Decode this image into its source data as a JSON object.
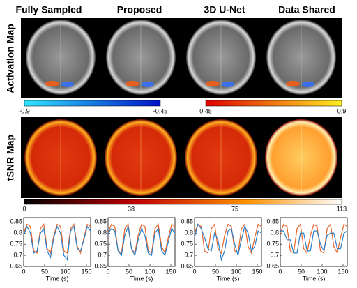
{
  "column_titles": [
    "Fully Sampled",
    "Proposed",
    "3D U-Net",
    "Data Shared"
  ],
  "row_labels": [
    "Activation Map",
    "tSNR Map"
  ],
  "colorbars": [
    {
      "ticks": [
        -0.9,
        -0.45
      ]
    },
    {
      "ticks": [
        0.45,
        0.9
      ]
    },
    {
      "ticks": [
        0,
        38,
        75,
        113
      ]
    }
  ],
  "chart_data": [
    {
      "type": "line",
      "xlabel": "Time (s)",
      "xlim": [
        0,
        160
      ],
      "ylim": [
        0.65,
        0.87
      ],
      "xticks": [
        0,
        50,
        100,
        150
      ],
      "yticks": [
        0.65,
        0.7,
        0.75,
        0.8,
        0.85
      ],
      "x": [
        0,
        8,
        16,
        24,
        32,
        40,
        48,
        56,
        64,
        72,
        80,
        88,
        96,
        104,
        112,
        120,
        128,
        136,
        144,
        152,
        160
      ],
      "series": [
        {
          "color": "#e8642a",
          "values": [
            0.8,
            0.84,
            0.83,
            0.72,
            0.71,
            0.82,
            0.84,
            0.73,
            0.71,
            0.79,
            0.84,
            0.83,
            0.72,
            0.71,
            0.82,
            0.84,
            0.74,
            0.71,
            0.78,
            0.84,
            0.83
          ]
        },
        {
          "color": "#2a7fc9",
          "values": [
            0.79,
            0.83,
            0.8,
            0.71,
            0.72,
            0.8,
            0.82,
            0.72,
            0.69,
            0.78,
            0.83,
            0.8,
            0.7,
            0.68,
            0.81,
            0.83,
            0.73,
            0.72,
            0.77,
            0.83,
            0.81
          ]
        }
      ]
    },
    {
      "type": "line",
      "xlabel": "Time (s)",
      "xlim": [
        0,
        160
      ],
      "ylim": [
        0.65,
        0.87
      ],
      "xticks": [
        0,
        50,
        100,
        150
      ],
      "yticks": [
        0.65,
        0.7,
        0.75,
        0.8,
        0.85
      ],
      "x": [
        0,
        8,
        16,
        24,
        32,
        40,
        48,
        56,
        64,
        72,
        80,
        88,
        96,
        104,
        112,
        120,
        128,
        136,
        144,
        152,
        160
      ],
      "series": [
        {
          "color": "#e8642a",
          "values": [
            0.8,
            0.84,
            0.83,
            0.72,
            0.71,
            0.82,
            0.84,
            0.73,
            0.71,
            0.79,
            0.84,
            0.83,
            0.72,
            0.71,
            0.82,
            0.84,
            0.74,
            0.71,
            0.78,
            0.84,
            0.83
          ]
        },
        {
          "color": "#2a7fc9",
          "values": [
            0.8,
            0.82,
            0.81,
            0.72,
            0.7,
            0.79,
            0.83,
            0.73,
            0.7,
            0.77,
            0.82,
            0.79,
            0.71,
            0.7,
            0.8,
            0.82,
            0.72,
            0.7,
            0.76,
            0.82,
            0.8
          ]
        }
      ]
    },
    {
      "type": "line",
      "xlabel": "Time (s)",
      "xlim": [
        0,
        160
      ],
      "ylim": [
        0.65,
        0.87
      ],
      "xticks": [
        0,
        50,
        100,
        150
      ],
      "yticks": [
        0.65,
        0.7,
        0.75,
        0.8,
        0.85
      ],
      "x": [
        0,
        8,
        16,
        24,
        32,
        40,
        48,
        56,
        64,
        72,
        80,
        88,
        96,
        104,
        112,
        120,
        128,
        136,
        144,
        152,
        160
      ],
      "series": [
        {
          "color": "#e8642a",
          "values": [
            0.8,
            0.84,
            0.83,
            0.72,
            0.71,
            0.82,
            0.84,
            0.73,
            0.71,
            0.79,
            0.84,
            0.83,
            0.72,
            0.71,
            0.82,
            0.84,
            0.74,
            0.71,
            0.78,
            0.84,
            0.83
          ]
        },
        {
          "color": "#2a7fc9",
          "values": [
            0.78,
            0.84,
            0.82,
            0.78,
            0.73,
            0.72,
            0.8,
            0.77,
            0.68,
            0.72,
            0.81,
            0.82,
            0.75,
            0.7,
            0.77,
            0.83,
            0.8,
            0.72,
            0.74,
            0.81,
            0.8
          ]
        }
      ]
    },
    {
      "type": "line",
      "xlabel": "Time (s)",
      "xlim": [
        0,
        160
      ],
      "ylim": [
        0.65,
        0.87
      ],
      "xticks": [
        0,
        50,
        100,
        150
      ],
      "yticks": [
        0.65,
        0.7,
        0.75,
        0.8,
        0.85
      ],
      "x": [
        0,
        8,
        16,
        24,
        32,
        40,
        48,
        56,
        64,
        72,
        80,
        88,
        96,
        104,
        112,
        120,
        128,
        136,
        144,
        152,
        160
      ],
      "series": [
        {
          "color": "#e8642a",
          "values": [
            0.8,
            0.84,
            0.83,
            0.72,
            0.71,
            0.82,
            0.84,
            0.73,
            0.71,
            0.79,
            0.84,
            0.83,
            0.72,
            0.71,
            0.82,
            0.84,
            0.74,
            0.71,
            0.78,
            0.84,
            0.83
          ]
        },
        {
          "color": "#2a7fc9",
          "values": [
            0.81,
            0.81,
            0.77,
            0.77,
            0.71,
            0.71,
            0.8,
            0.8,
            0.72,
            0.72,
            0.81,
            0.81,
            0.75,
            0.72,
            0.79,
            0.8,
            0.8,
            0.73,
            0.73,
            0.8,
            0.81
          ]
        }
      ]
    }
  ]
}
